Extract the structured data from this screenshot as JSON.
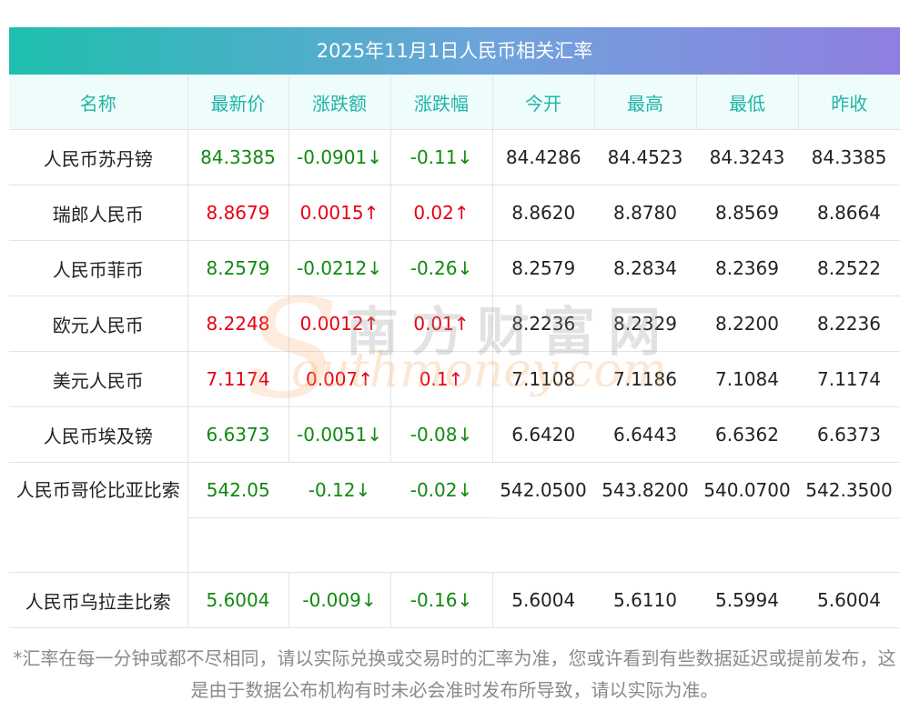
{
  "title": "2025年11月1日人民币相关汇率",
  "headers": [
    "名称",
    "最新价",
    "涨跌额",
    "涨跌幅",
    "今开",
    "最高",
    "最低",
    "昨收"
  ],
  "colors": {
    "up": "#e60012",
    "down": "#108a10",
    "header_text": "#1fb5a6"
  },
  "rows": [
    {
      "name": "人民币苏丹镑",
      "latest": "84.3385",
      "change": "-0.0901↓",
      "pct": "-0.11↓",
      "open": "84.4286",
      "high": "84.4523",
      "low": "84.3243",
      "prev": "84.3385",
      "dir": "down"
    },
    {
      "name": "瑞郎人民币",
      "latest": "8.8679",
      "change": "0.0015↑",
      "pct": "0.02↑",
      "open": "8.8620",
      "high": "8.8780",
      "low": "8.8569",
      "prev": "8.8664",
      "dir": "up"
    },
    {
      "name": "人民币菲币",
      "latest": "8.2579",
      "change": "-0.0212↓",
      "pct": "-0.26↓",
      "open": "8.2579",
      "high": "8.2834",
      "low": "8.2369",
      "prev": "8.2522",
      "dir": "down"
    },
    {
      "name": "欧元人民币",
      "latest": "8.2248",
      "change": "0.0012↑",
      "pct": "0.01↑",
      "open": "8.2236",
      "high": "8.2329",
      "low": "8.2200",
      "prev": "8.2236",
      "dir": "up"
    },
    {
      "name": "美元人民币",
      "latest": "7.1174",
      "change": "0.007↑",
      "pct": "0.1↑",
      "open": "7.1108",
      "high": "7.1186",
      "low": "7.1084",
      "prev": "7.1174",
      "dir": "up"
    },
    {
      "name": "人民币埃及镑",
      "latest": "6.6373",
      "change": "-0.0051↓",
      "pct": "-0.08↓",
      "open": "6.6420",
      "high": "6.6443",
      "low": "6.6362",
      "prev": "6.6373",
      "dir": "down"
    },
    {
      "name": "人民币哥伦比亚比索",
      "latest": "542.05",
      "change": "-0.12↓",
      "pct": "-0.02↓",
      "open": "542.0500",
      "high": "543.8200",
      "low": "540.0700",
      "prev": "542.3500",
      "dir": "down"
    },
    {
      "name": "人民币乌拉圭比索",
      "latest": "5.6004",
      "change": "-0.009↓",
      "pct": "-0.16↓",
      "open": "5.6004",
      "high": "5.6110",
      "low": "5.5994",
      "prev": "5.6004",
      "dir": "down"
    }
  ],
  "watermark": {
    "cn": "南方财富网",
    "en": "outhmoney.com",
    "s": "S"
  },
  "footnote": "*汇率在每一分钟或都不尽相同，请以实际兑换或交易时的汇率为准，您或许看到有些数据延迟或提前发布，这是由于数据公布机构有时未必会准时发布所导致，请以实际为准。"
}
